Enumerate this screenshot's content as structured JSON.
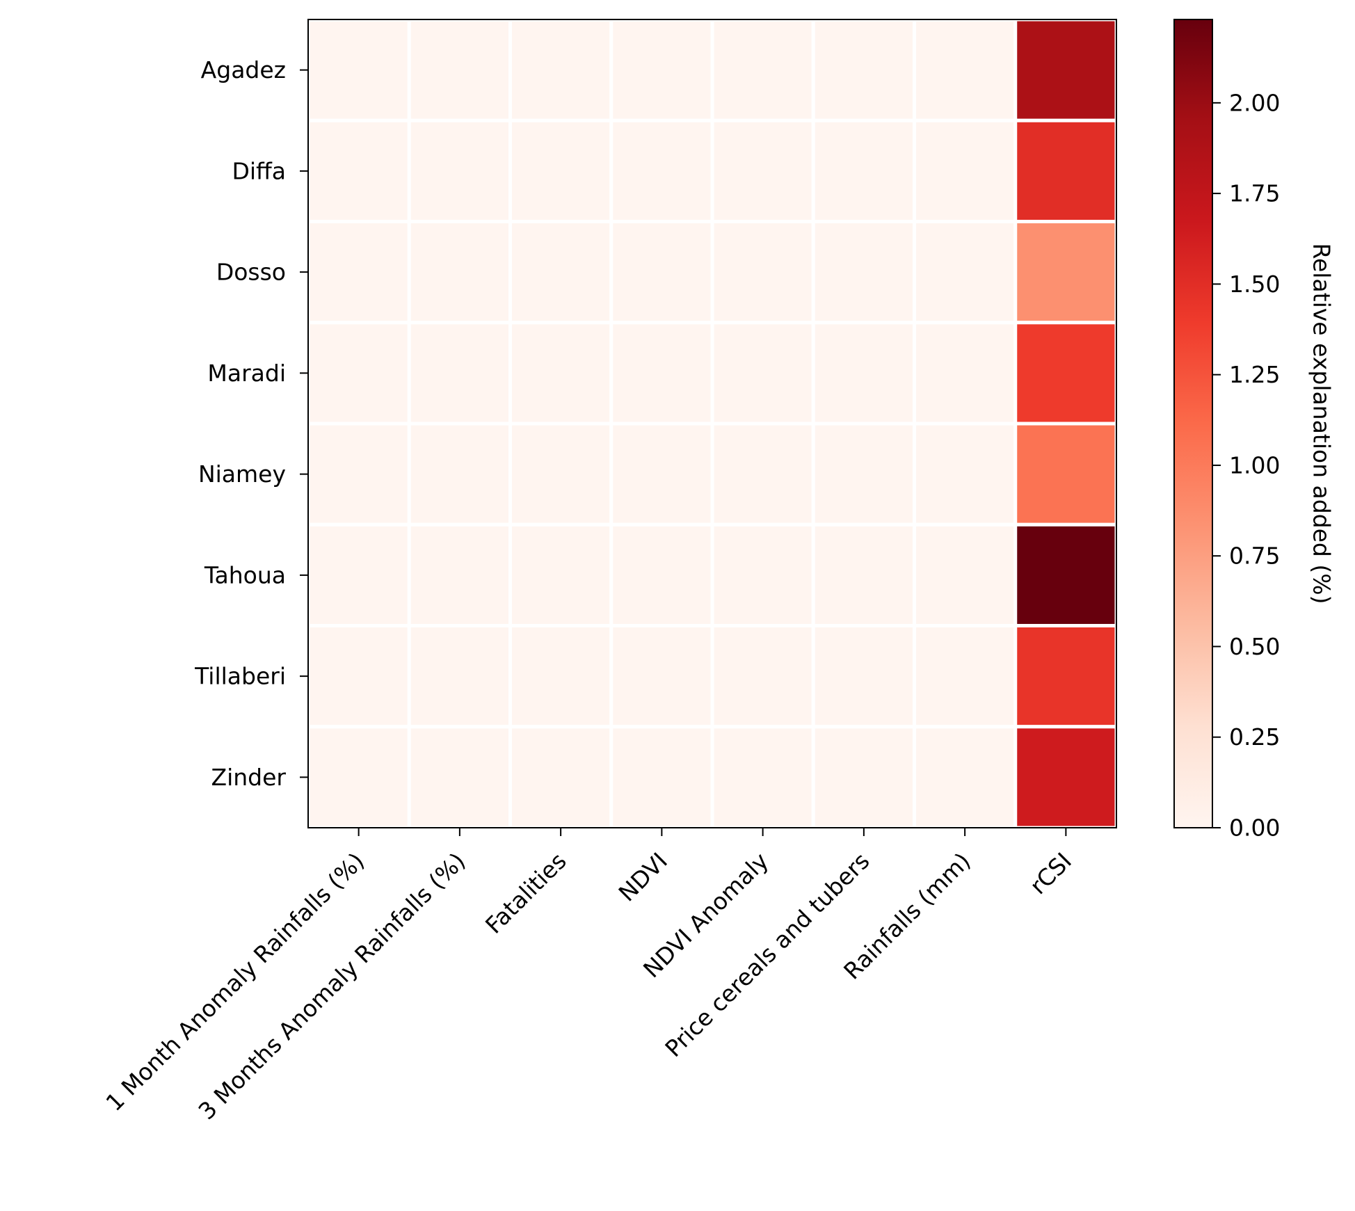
{
  "chart_data": {
    "type": "heatmap",
    "title": "",
    "xlabel": "",
    "ylabel": "",
    "rows": [
      "Agadez",
      "Diffa",
      "Dosso",
      "Maradi",
      "Niamey",
      "Tahoua",
      "Tillaberi",
      "Zinder"
    ],
    "columns": [
      "1 Month Anomaly Rainfalls (%)",
      "3 Months Anomaly Rainfalls (%)",
      "Fatalities",
      "NDVI",
      "NDVI Anomaly",
      "Price cereals and tubers",
      "Rainfalls (mm)",
      "rCSI"
    ],
    "values": [
      [
        0,
        0,
        0,
        0,
        0,
        0,
        0,
        1.9
      ],
      [
        0,
        0,
        0,
        0,
        0,
        0,
        0,
        1.5
      ],
      [
        0,
        0,
        0,
        0,
        0,
        0,
        0,
        0.85
      ],
      [
        0,
        0,
        0,
        0,
        0,
        0,
        0,
        1.4
      ],
      [
        0,
        0,
        0,
        0,
        0,
        0,
        0,
        1.05
      ],
      [
        0,
        0,
        0,
        0,
        0,
        0,
        0,
        2.23
      ],
      [
        0,
        0,
        0,
        0,
        0,
        0,
        0,
        1.45
      ],
      [
        0,
        0,
        0,
        0,
        0,
        0,
        0,
        1.65
      ]
    ],
    "colormap": "Reds",
    "vmin": 0,
    "vmax": 2.23,
    "colorbar": {
      "label": "Relative explanation added (%)",
      "ticks": [
        0,
        0.25,
        0.5,
        0.75,
        1.0,
        1.25,
        1.5,
        1.75,
        2.0
      ],
      "tick_labels": [
        "0.00",
        "0.25",
        "0.50",
        "0.75",
        "1.00",
        "1.25",
        "1.50",
        "1.75",
        "2.00"
      ]
    },
    "cell_border_color": "#ffffff"
  }
}
